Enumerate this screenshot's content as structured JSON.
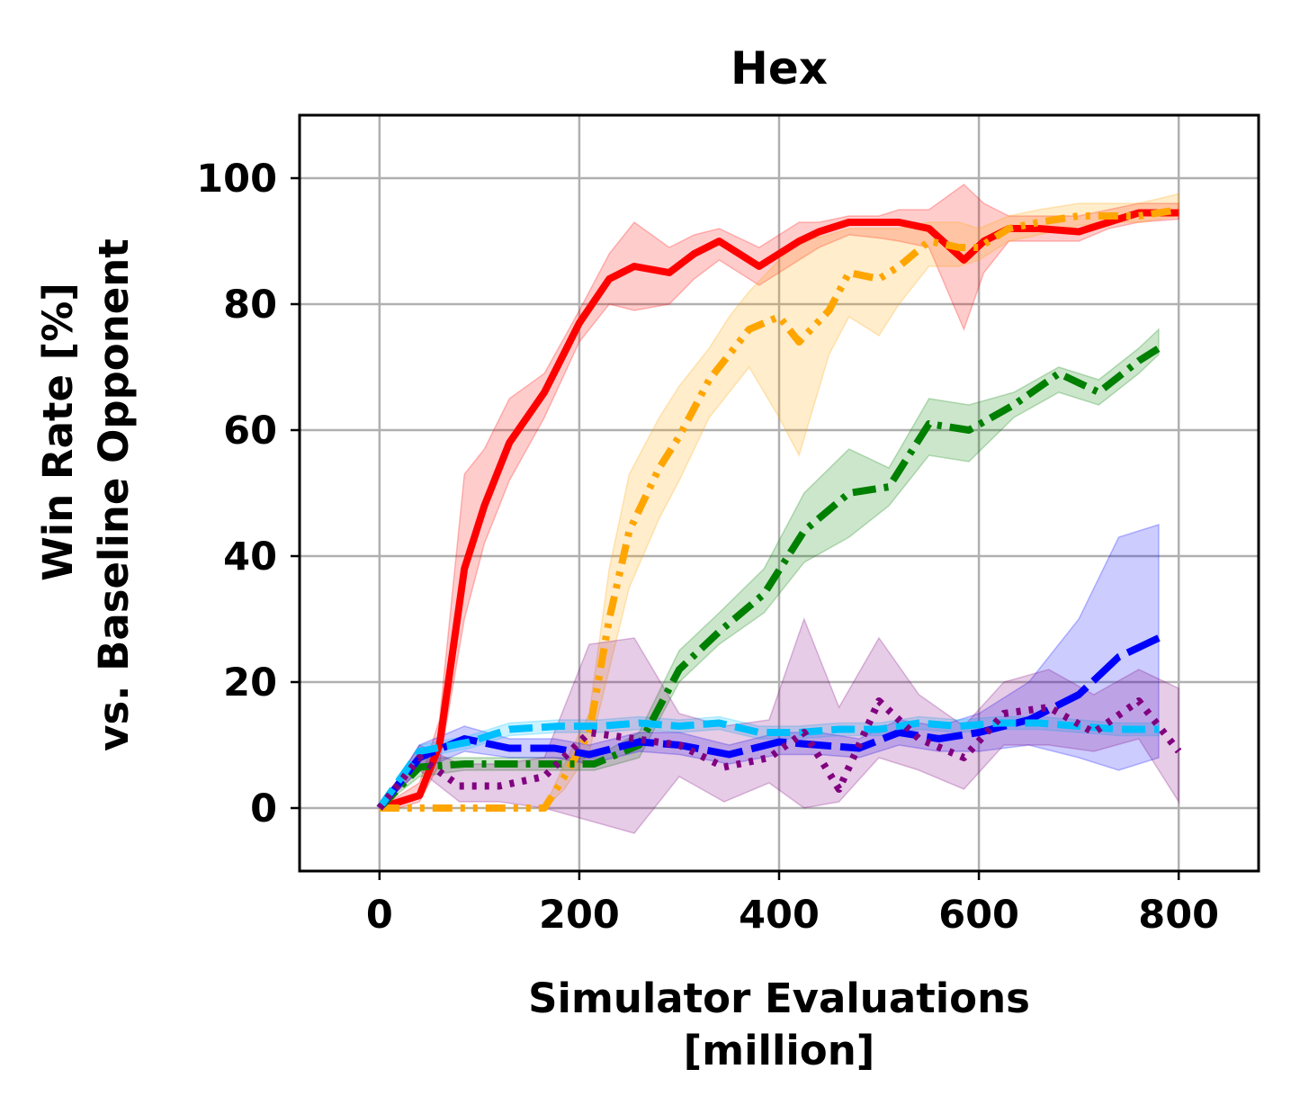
{
  "chart_data": {
    "type": "line",
    "title": "Hex",
    "xlabel": [
      "Simulator Evaluations",
      "[million]"
    ],
    "ylabel": [
      "Win Rate [%]",
      "vs. Baseline Opponent"
    ],
    "xlim": [
      -80,
      880
    ],
    "ylim": [
      -10,
      110
    ],
    "xticks": [
      "0",
      "200",
      "400",
      "600",
      "800"
    ],
    "yticks": [
      "0",
      "20",
      "40",
      "60",
      "80",
      "100"
    ],
    "grid": true,
    "legend": "none",
    "series": [
      {
        "color": "#ff0000",
        "dash": "solid",
        "x": [
          0,
          20,
          40,
          60,
          85,
          105,
          130,
          165,
          200,
          230,
          255,
          290,
          315,
          340,
          380,
          400,
          420,
          440,
          470,
          500,
          520,
          550,
          585,
          605,
          630,
          660,
          700,
          730,
          760,
          800
        ],
        "y": [
          0,
          1,
          2,
          10,
          38,
          48,
          58,
          66,
          77,
          84,
          86,
          85,
          88,
          90,
          86,
          88,
          90,
          91.5,
          93,
          93,
          93,
          92,
          87,
          90,
          92,
          92,
          91.5,
          93,
          94.5,
          94.5
        ],
        "lower": [
          0,
          0,
          1,
          7,
          30,
          42,
          52,
          62,
          74,
          80,
          79,
          80,
          84,
          87,
          83,
          85,
          87,
          89,
          91,
          90.5,
          90,
          89,
          76,
          85,
          90,
          90,
          90,
          92,
          93,
          93.5
        ],
        "upper": [
          0,
          2,
          4,
          14,
          53,
          57,
          65,
          69,
          79,
          88,
          93,
          89,
          91,
          92,
          89,
          91,
          93,
          93,
          94,
          94,
          95,
          95,
          99,
          96,
          94,
          94,
          94,
          95,
          96,
          96
        ]
      },
      {
        "color": "#ffa500",
        "dash": "dashdotdot",
        "x": [
          0,
          40,
          80,
          120,
          165,
          185,
          210,
          230,
          250,
          280,
          300,
          330,
          350,
          370,
          400,
          420,
          450,
          470,
          500,
          520,
          550,
          580,
          600,
          630,
          660,
          700,
          730,
          760,
          800
        ],
        "y": [
          0,
          0,
          0,
          0,
          0,
          5,
          12,
          30,
          44,
          54,
          59,
          68,
          72,
          76,
          78,
          74,
          79,
          85,
          84,
          86,
          90,
          89,
          89,
          92,
          93,
          94,
          94,
          94,
          95
        ],
        "lower": [
          0,
          0,
          0,
          0,
          0,
          3,
          9,
          22,
          35,
          46,
          52,
          62,
          66,
          70,
          62,
          56,
          72,
          78,
          75,
          80,
          86,
          86,
          87,
          90,
          91,
          92.5,
          93,
          93,
          94
        ],
        "upper": [
          0,
          0,
          0,
          0,
          0,
          7,
          15,
          38,
          53,
          62,
          67,
          73,
          78,
          82,
          87,
          90,
          91,
          92,
          92,
          92,
          93,
          93,
          92,
          94,
          95,
          96,
          96,
          96,
          97.5
        ]
      },
      {
        "color": "#008000",
        "dash": "dashdot",
        "x": [
          0,
          40,
          85,
          130,
          175,
          215,
          260,
          300,
          340,
          385,
          425,
          470,
          510,
          550,
          590,
          635,
          680,
          720,
          760,
          780
        ],
        "y": [
          0,
          6.5,
          7,
          7,
          7,
          7,
          10,
          22,
          28,
          34,
          44,
          50,
          51,
          61,
          60,
          64,
          69,
          66,
          71,
          73
        ],
        "lower": [
          0,
          5,
          6,
          6,
          6,
          6,
          8,
          20,
          26,
          31,
          39,
          43,
          48,
          56,
          55,
          62,
          66,
          64,
          69,
          72
        ],
        "upper": [
          0,
          8,
          8,
          8,
          8,
          8,
          12,
          25,
          31,
          38,
          50,
          57,
          54,
          65,
          64,
          66,
          70,
          68,
          73,
          76
        ]
      },
      {
        "color": "#0000ff",
        "dash": "longdash",
        "x": [
          0,
          40,
          85,
          130,
          175,
          210,
          260,
          300,
          350,
          400,
          440,
          480,
          520,
          560,
          600,
          650,
          700,
          740,
          780
        ],
        "y": [
          0,
          8,
          11,
          9.5,
          9.5,
          8.5,
          10.5,
          10,
          8.5,
          10.5,
          10,
          9.5,
          12,
          11,
          12,
          14,
          18,
          24,
          27
        ],
        "lower": [
          0,
          6,
          9,
          8,
          8,
          7,
          9,
          8.5,
          7,
          8.5,
          8.5,
          8,
          10,
          9,
          9,
          10,
          8,
          6,
          8
        ],
        "upper": [
          0,
          10,
          13,
          11,
          11,
          10,
          12,
          12,
          10,
          12,
          12,
          11,
          14,
          13,
          15,
          20,
          30,
          43,
          45
        ]
      },
      {
        "color": "#00bfff",
        "dash": "dashed",
        "x": [
          0,
          40,
          90,
          130,
          180,
          220,
          260,
          300,
          340,
          380,
          420,
          460,
          500,
          540,
          580,
          620,
          660,
          700,
          740,
          780
        ],
        "y": [
          0,
          9,
          10.5,
          12.5,
          13,
          13,
          13.5,
          13,
          13.5,
          12,
          12,
          12.5,
          12.5,
          13.5,
          13,
          13.5,
          13.5,
          13,
          12.5,
          12.5
        ],
        "lower": [
          0,
          8,
          9.5,
          11.5,
          12,
          12,
          12.5,
          12,
          12.5,
          11,
          11,
          11.5,
          11.5,
          12.5,
          12,
          12.5,
          12.5,
          12,
          11.5,
          11.5
        ],
        "upper": [
          0,
          10,
          11.5,
          13.5,
          14,
          14,
          14.5,
          14,
          14.5,
          13,
          13,
          13.5,
          13.5,
          14.5,
          14,
          14.5,
          14.5,
          14,
          13.5,
          13.5
        ]
      },
      {
        "color": "#800080",
        "dash": "dotted",
        "x": [
          0,
          40,
          80,
          120,
          165,
          210,
          255,
          300,
          345,
          390,
          425,
          460,
          500,
          540,
          585,
          625,
          670,
          715,
          760,
          800
        ],
        "y": [
          0,
          8,
          3.5,
          3.5,
          5,
          12,
          11,
          10,
          6.5,
          8,
          12,
          3,
          17,
          11,
          8,
          15,
          16,
          12,
          17,
          9
        ],
        "lower": [
          0,
          6,
          1,
          1,
          0,
          -2,
          -4,
          5,
          1,
          4,
          0,
          1,
          8,
          6,
          3,
          10,
          10,
          9,
          11,
          1
        ],
        "upper": [
          0,
          10,
          7,
          7,
          8,
          26,
          27,
          15,
          13,
          14,
          30,
          16,
          27,
          18,
          13,
          20,
          22,
          18,
          22,
          19
        ]
      }
    ]
  }
}
